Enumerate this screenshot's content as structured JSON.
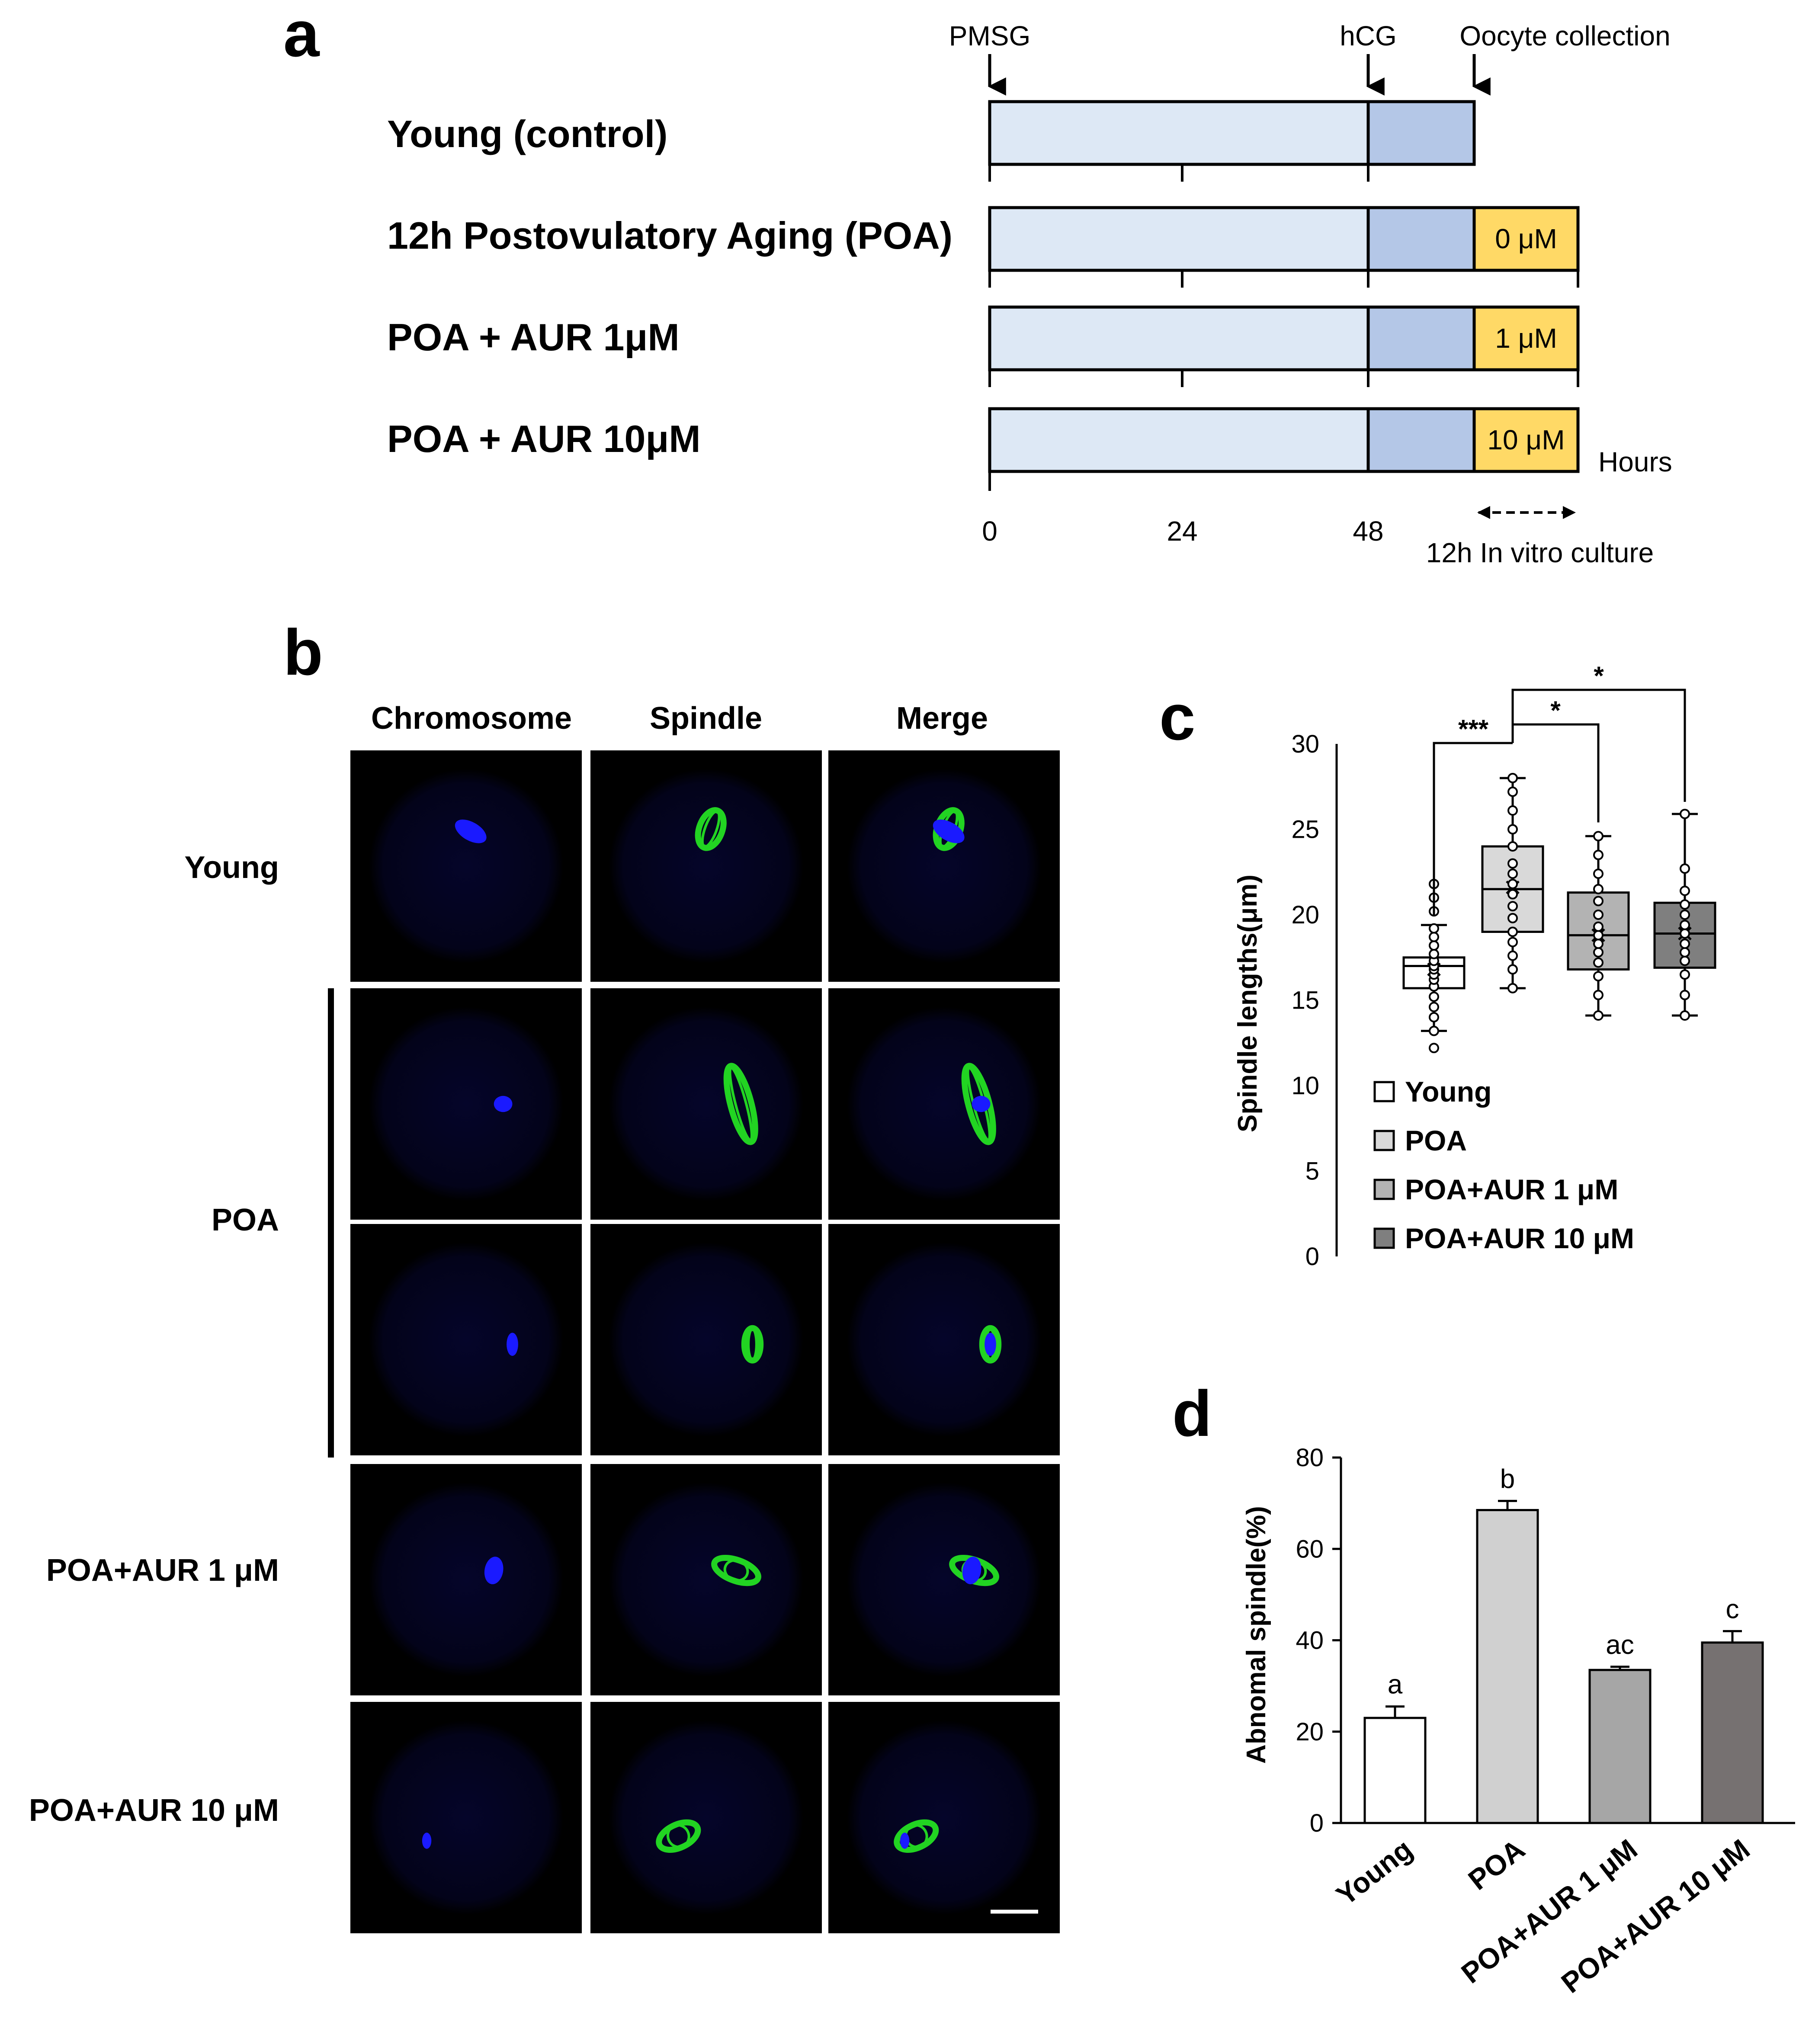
{
  "panel_a": {
    "letter": "a",
    "events": {
      "pmsg": "PMSG",
      "hcg": "hCG",
      "collection": "Oocyte collection"
    },
    "rows": [
      {
        "label": "Young (control)",
        "dose": ""
      },
      {
        "label": "12h Postovulatory Aging (POA)",
        "dose": "0 μM"
      },
      {
        "label": "POA + AUR 1μM",
        "dose": "1 μM"
      },
      {
        "label": "POA + AUR 10μM",
        "dose": "10 μM"
      }
    ],
    "axis_ticks": [
      "0",
      "24",
      "48"
    ],
    "axis_unit": "Hours",
    "culture_label": "12h  In vitro culture",
    "colors": {
      "pmsg_phase": "#dde8f5",
      "hcg_phase": "#b4c7e7",
      "culture_phase": "#ffd966"
    }
  },
  "panel_b": {
    "letter": "b",
    "columns": [
      "Chromosome",
      "Spindle",
      "Merge"
    ],
    "rows": [
      {
        "label": "Young"
      },
      {
        "label": "POA"
      },
      {
        "label": "POA+AUR 1 μM"
      },
      {
        "label": "POA+AUR 10 μM"
      }
    ],
    "channel_colors": {
      "chromosome": "#1a1aff",
      "spindle": "#22d422"
    }
  },
  "panel_c": {
    "letter": "c",
    "chart_data": {
      "type": "box",
      "ylabel": "Spindle lengths(μm)",
      "ylim": [
        0,
        30
      ],
      "yticks": [
        0,
        5,
        10,
        15,
        20,
        25,
        30
      ],
      "series": [
        {
          "name": "Young",
          "color": "#ffffff",
          "min": 13.2,
          "q1": 15.7,
          "median": 17.0,
          "q3": 17.5,
          "max": 19.4,
          "mean": 16.8,
          "points": [
            12.2,
            13.2,
            14.0,
            14.6,
            15.2,
            15.8,
            16.2,
            16.5,
            16.8,
            17.0,
            17.3,
            17.7,
            18.2,
            18.7,
            19.2,
            20.2,
            21.0,
            21.8
          ]
        },
        {
          "name": "POA",
          "color": "#d9d9d9",
          "min": 15.7,
          "q1": 19.0,
          "median": 21.5,
          "q3": 24.0,
          "max": 28.0,
          "mean": 21.6,
          "points": [
            15.7,
            16.8,
            17.6,
            18.4,
            19.0,
            19.8,
            20.5,
            21.2,
            21.8,
            22.4,
            23.0,
            24.0,
            25.0,
            26.1,
            27.2,
            28.0
          ]
        },
        {
          "name": "POA+AUR 1 μM",
          "color": "#b3b3b3",
          "min": 14.1,
          "q1": 16.8,
          "median": 18.8,
          "q3": 21.3,
          "max": 24.6,
          "mean": 18.8,
          "points": [
            14.1,
            15.3,
            16.4,
            17.2,
            17.8,
            18.3,
            18.8,
            19.3,
            20.0,
            20.8,
            21.5,
            22.4,
            23.5,
            24.6
          ]
        },
        {
          "name": "POA+AUR 10 μM",
          "color": "#7f7f7f",
          "min": 14.1,
          "q1": 16.9,
          "median": 18.9,
          "q3": 20.7,
          "max": 25.9,
          "mean": 18.9,
          "points": [
            14.1,
            15.3,
            16.5,
            17.3,
            17.8,
            18.3,
            18.9,
            19.4,
            20.0,
            20.6,
            21.4,
            22.7,
            25.9
          ]
        }
      ],
      "significance": [
        "***",
        "*",
        "*"
      ]
    }
  },
  "panel_d": {
    "letter": "d",
    "chart_data": {
      "type": "bar",
      "ylabel": "Abnomal spindle(%)",
      "ylim": [
        0,
        80
      ],
      "yticks": [
        0,
        20,
        40,
        60,
        80
      ],
      "categories": [
        "Young",
        "POA",
        "POA+AUR 1 μM",
        "POA+AUR 10 μM"
      ],
      "values": [
        23.0,
        68.5,
        33.5,
        39.5
      ],
      "errors": [
        2.5,
        2.0,
        0.7,
        2.5
      ],
      "letters": [
        "a",
        "b",
        "ac",
        "c"
      ],
      "colors": [
        "#ffffff",
        "#d0d0d0",
        "#a6a6a6",
        "#767171"
      ]
    }
  }
}
